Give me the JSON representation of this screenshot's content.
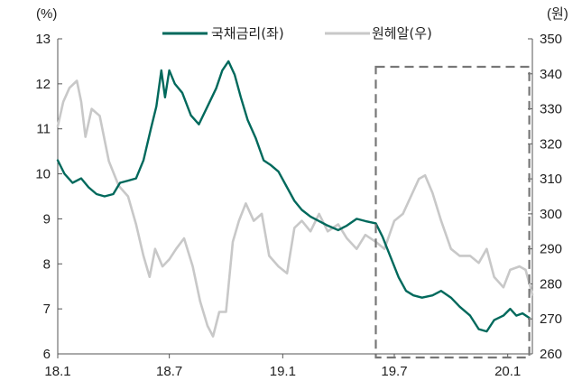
{
  "chart_data": {
    "type": "line",
    "title": "",
    "x_ticks": [
      "18.1",
      "18.7",
      "19.1",
      "19.7",
      "20.1"
    ],
    "x_range": [
      "2018-01-01",
      "2020-02-10"
    ],
    "y_left": {
      "unit": "(%)",
      "ticks": [
        6,
        7,
        8,
        9,
        10,
        11,
        12,
        13
      ],
      "range": [
        6,
        13
      ]
    },
    "y_right": {
      "unit": "(원)",
      "ticks": [
        260,
        270,
        280,
        290,
        300,
        310,
        320,
        330,
        340,
        350
      ],
      "range": [
        260,
        350
      ]
    },
    "legend": {
      "placement": "top-center"
    },
    "grid": false,
    "highlight_box": {
      "style": "dashed",
      "x_range": [
        "2019-06-01",
        "2020-02-05"
      ]
    },
    "series": [
      {
        "name": "국채금리(좌)",
        "axis": "left",
        "color": "#00695c",
        "points": [
          [
            "2018-01-01",
            10.3
          ],
          [
            "2018-01-12",
            10.0
          ],
          [
            "2018-01-25",
            9.8
          ],
          [
            "2018-02-08",
            9.9
          ],
          [
            "2018-02-20",
            9.7
          ],
          [
            "2018-03-05",
            9.55
          ],
          [
            "2018-03-18",
            9.5
          ],
          [
            "2018-04-01",
            9.55
          ],
          [
            "2018-04-12",
            9.8
          ],
          [
            "2018-04-25",
            9.85
          ],
          [
            "2018-05-08",
            9.9
          ],
          [
            "2018-05-20",
            10.3
          ],
          [
            "2018-06-01",
            11.0
          ],
          [
            "2018-06-10",
            11.5
          ],
          [
            "2018-06-18",
            12.3
          ],
          [
            "2018-06-24",
            11.7
          ],
          [
            "2018-07-01",
            12.3
          ],
          [
            "2018-07-10",
            12.0
          ],
          [
            "2018-07-22",
            11.8
          ],
          [
            "2018-08-05",
            11.3
          ],
          [
            "2018-08-18",
            11.1
          ],
          [
            "2018-09-01",
            11.5
          ],
          [
            "2018-09-15",
            11.9
          ],
          [
            "2018-09-25",
            12.3
          ],
          [
            "2018-10-05",
            12.5
          ],
          [
            "2018-10-15",
            12.2
          ],
          [
            "2018-10-25",
            11.7
          ],
          [
            "2018-11-05",
            11.2
          ],
          [
            "2018-11-18",
            10.8
          ],
          [
            "2018-12-01",
            10.3
          ],
          [
            "2018-12-12",
            10.2
          ],
          [
            "2018-12-25",
            10.05
          ],
          [
            "2019-01-08",
            9.7
          ],
          [
            "2019-01-20",
            9.4
          ],
          [
            "2019-02-01",
            9.2
          ],
          [
            "2019-02-15",
            9.05
          ],
          [
            "2019-03-01",
            8.95
          ],
          [
            "2019-03-15",
            8.85
          ],
          [
            "2019-04-01",
            8.75
          ],
          [
            "2019-04-15",
            8.85
          ],
          [
            "2019-05-01",
            9.0
          ],
          [
            "2019-05-15",
            8.95
          ],
          [
            "2019-06-01",
            8.9
          ],
          [
            "2019-06-12",
            8.6
          ],
          [
            "2019-06-25",
            8.15
          ],
          [
            "2019-07-08",
            7.7
          ],
          [
            "2019-07-20",
            7.4
          ],
          [
            "2019-08-01",
            7.3
          ],
          [
            "2019-08-15",
            7.25
          ],
          [
            "2019-09-01",
            7.3
          ],
          [
            "2019-09-15",
            7.4
          ],
          [
            "2019-10-01",
            7.25
          ],
          [
            "2019-10-15",
            7.05
          ],
          [
            "2019-11-01",
            6.85
          ],
          [
            "2019-11-15",
            6.55
          ],
          [
            "2019-11-28",
            6.5
          ],
          [
            "2019-12-10",
            6.75
          ],
          [
            "2019-12-25",
            6.85
          ],
          [
            "2020-01-05",
            7.0
          ],
          [
            "2020-01-15",
            6.85
          ],
          [
            "2020-01-25",
            6.9
          ],
          [
            "2020-02-05",
            6.8
          ]
        ]
      },
      {
        "name": "원헤알(우)",
        "axis": "right",
        "color": "#c8c8c8",
        "points": [
          [
            "2018-01-01",
            325
          ],
          [
            "2018-01-10",
            332
          ],
          [
            "2018-01-20",
            336
          ],
          [
            "2018-02-01",
            338
          ],
          [
            "2018-02-08",
            332
          ],
          [
            "2018-02-15",
            322
          ],
          [
            "2018-02-25",
            330
          ],
          [
            "2018-03-10",
            328
          ],
          [
            "2018-03-25",
            315
          ],
          [
            "2018-04-10",
            308
          ],
          [
            "2018-04-25",
            305
          ],
          [
            "2018-05-08",
            297
          ],
          [
            "2018-05-20",
            288
          ],
          [
            "2018-05-30",
            282
          ],
          [
            "2018-06-08",
            290
          ],
          [
            "2018-06-20",
            285
          ],
          [
            "2018-07-01",
            287
          ],
          [
            "2018-07-12",
            290
          ],
          [
            "2018-07-25",
            293
          ],
          [
            "2018-08-08",
            285
          ],
          [
            "2018-08-20",
            275
          ],
          [
            "2018-09-01",
            268
          ],
          [
            "2018-09-10",
            265
          ],
          [
            "2018-09-20",
            272
          ],
          [
            "2018-10-01",
            272
          ],
          [
            "2018-10-12",
            292
          ],
          [
            "2018-10-22",
            298
          ],
          [
            "2018-11-02",
            303
          ],
          [
            "2018-11-15",
            298
          ],
          [
            "2018-11-28",
            300
          ],
          [
            "2018-12-10",
            288
          ],
          [
            "2018-12-25",
            285
          ],
          [
            "2019-01-08",
            283
          ],
          [
            "2019-01-20",
            296
          ],
          [
            "2019-02-01",
            298
          ],
          [
            "2019-02-15",
            295
          ],
          [
            "2019-03-01",
            300
          ],
          [
            "2019-03-15",
            295
          ],
          [
            "2019-04-01",
            297
          ],
          [
            "2019-04-15",
            293
          ],
          [
            "2019-05-01",
            290
          ],
          [
            "2019-05-15",
            294
          ],
          [
            "2019-06-01",
            292
          ],
          [
            "2019-06-15",
            290
          ],
          [
            "2019-07-01",
            298
          ],
          [
            "2019-07-15",
            300
          ],
          [
            "2019-07-28",
            305
          ],
          [
            "2019-08-10",
            310
          ],
          [
            "2019-08-20",
            311
          ],
          [
            "2019-09-01",
            306
          ],
          [
            "2019-09-15",
            298
          ],
          [
            "2019-10-01",
            290
          ],
          [
            "2019-10-15",
            288
          ],
          [
            "2019-11-01",
            288
          ],
          [
            "2019-11-15",
            286
          ],
          [
            "2019-11-28",
            290
          ],
          [
            "2019-12-10",
            282
          ],
          [
            "2019-12-25",
            279
          ],
          [
            "2020-01-05",
            284
          ],
          [
            "2020-01-20",
            285
          ],
          [
            "2020-01-30",
            284
          ],
          [
            "2020-02-10",
            277
          ]
        ]
      }
    ]
  }
}
